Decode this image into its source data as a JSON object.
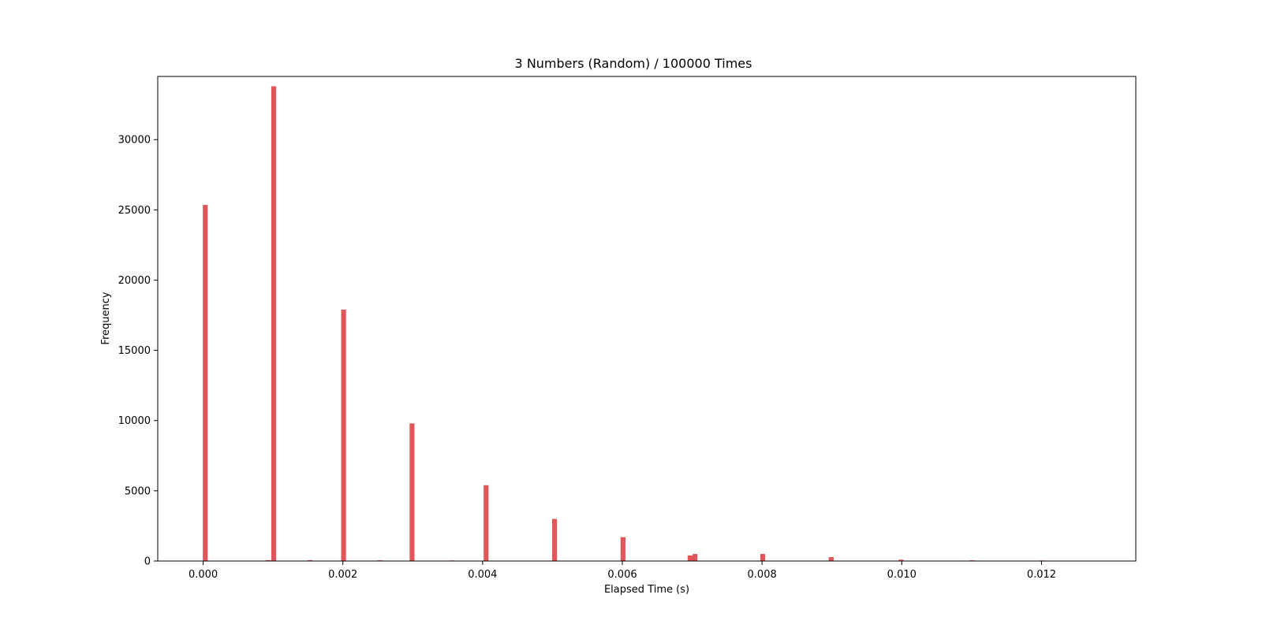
{
  "chart_data": {
    "type": "bar",
    "title": "3 Numbers (Random) / 100000 Times",
    "xlabel": "Elapsed Time (s)",
    "ylabel": "Frequency",
    "xlim": [
      -0.00065,
      0.01335
    ],
    "ylim": [
      0,
      34500
    ],
    "grid": false,
    "bar_color": "#e15759",
    "bar_width": 7e-05,
    "x_ticks": [
      0.0,
      0.002,
      0.004,
      0.006,
      0.008,
      0.01,
      0.012
    ],
    "x_tick_labels": [
      "0.000",
      "0.002",
      "0.004",
      "0.006",
      "0.008",
      "0.010",
      "0.012"
    ],
    "y_ticks": [
      0,
      5000,
      10000,
      15000,
      20000,
      25000,
      30000
    ],
    "y_tick_labels": [
      "0",
      "5000",
      "10000",
      "15000",
      "20000",
      "25000",
      "30000"
    ],
    "bins": [
      {
        "x": 3e-05,
        "value": 25350
      },
      {
        "x": 0.00093,
        "value": 60
      },
      {
        "x": 0.00101,
        "value": 33800
      },
      {
        "x": 0.00153,
        "value": 60
      },
      {
        "x": 0.00201,
        "value": 17900
      },
      {
        "x": 0.00253,
        "value": 50
      },
      {
        "x": 0.00299,
        "value": 9800
      },
      {
        "x": 0.00356,
        "value": 40
      },
      {
        "x": 0.00405,
        "value": 5400
      },
      {
        "x": 0.00503,
        "value": 3000
      },
      {
        "x": 0.00601,
        "value": 1700
      },
      {
        "x": 0.00697,
        "value": 400
      },
      {
        "x": 0.00704,
        "value": 500
      },
      {
        "x": 0.00801,
        "value": 500
      },
      {
        "x": 0.00899,
        "value": 280
      },
      {
        "x": 0.00999,
        "value": 100
      },
      {
        "x": 0.01101,
        "value": 50
      },
      {
        "x": 0.01201,
        "value": 40
      }
    ]
  }
}
